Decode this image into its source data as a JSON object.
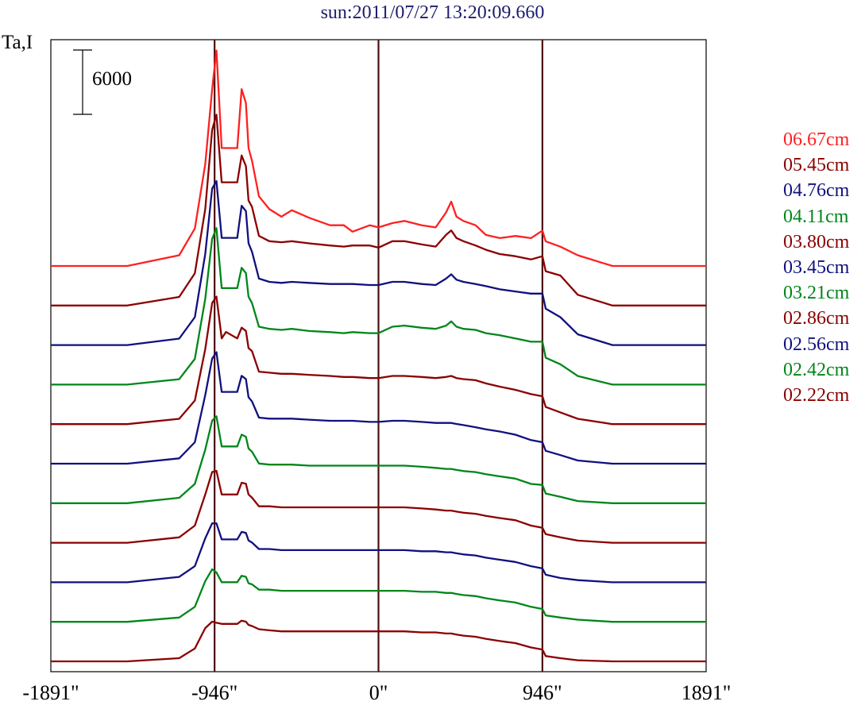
{
  "title": "sun:2011/07/27 13:20:09.660",
  "ylabel": "Ta,I",
  "scale_bar_label": "6000",
  "colors": {
    "frame": "#000000",
    "vlines": "#4a1010",
    "red": "#ff2020",
    "maroon": "#8b0000",
    "navy": "#10107f",
    "green": "#00861a"
  },
  "chart_data": {
    "type": "line",
    "title": "sun:2011/07/27 13:20:09.660",
    "ylabel": "Ta,I",
    "xlabel": "",
    "x_ticks": [
      "-1891\"",
      "-946\"",
      "0\"",
      "946\"",
      "1891\""
    ],
    "x_tick_values": [
      -1891,
      -946,
      0,
      946,
      1891
    ],
    "xlim": [
      -1891,
      1891
    ],
    "vertical_lines": [
      -946,
      0,
      946
    ],
    "scale_bar": 6000,
    "grid": false,
    "legend_placement": "right",
    "note_units": "x in arcsec; y in Ta,I units relative to each trace's baseline",
    "series": [
      {
        "name": "06.67cm",
        "color": "#ff2020",
        "x": [
          -1891,
          -1450,
          -1150,
          -1060,
          -1000,
          -960,
          -935,
          -905,
          -880,
          -815,
          -790,
          -765,
          -750,
          -730,
          -690,
          -630,
          -560,
          -500,
          -400,
          -280,
          -200,
          -150,
          -50,
          0,
          80,
          150,
          250,
          330,
          390,
          420,
          450,
          490,
          560,
          620,
          700,
          790,
          880,
          946,
          965,
          1050,
          1150,
          1350,
          1891
        ],
        "y": [
          0,
          0,
          1000,
          3500,
          9500,
          16500,
          20100,
          11000,
          11000,
          11000,
          16500,
          15200,
          11000,
          9800,
          6500,
          5300,
          4600,
          5200,
          4500,
          3800,
          3800,
          3200,
          3800,
          3600,
          4000,
          4200,
          3800,
          3600,
          5000,
          6000,
          4600,
          4200,
          3800,
          2900,
          2600,
          2800,
          2600,
          3300,
          2300,
          1800,
          1000,
          0,
          0
        ]
      },
      {
        "name": "05.45cm",
        "color": "#8b0000",
        "x": [
          -1891,
          -1450,
          -1150,
          -1060,
          -1000,
          -960,
          -935,
          -905,
          -880,
          -815,
          -790,
          -765,
          -750,
          -730,
          -690,
          -630,
          -560,
          -500,
          -400,
          -280,
          -200,
          -150,
          -50,
          0,
          80,
          150,
          250,
          330,
          390,
          420,
          450,
          490,
          560,
          620,
          700,
          790,
          880,
          946,
          965,
          1050,
          1150,
          1350,
          1891
        ],
        "y": [
          0,
          0,
          800,
          3000,
          9000,
          16400,
          17800,
          11500,
          11500,
          11500,
          14000,
          13000,
          9800,
          9200,
          6500,
          6000,
          5900,
          6000,
          5800,
          5600,
          5500,
          5600,
          5600,
          5400,
          6000,
          6000,
          5700,
          5500,
          6600,
          7000,
          6300,
          6000,
          5600,
          5200,
          4800,
          4600,
          4300,
          4600,
          3200,
          2800,
          1000,
          0,
          0
        ]
      },
      {
        "name": "04.76cm",
        "color": "#10107f",
        "x": [
          -1891,
          -1450,
          -1150,
          -1060,
          -1000,
          -960,
          -935,
          -905,
          -880,
          -815,
          -790,
          -765,
          -750,
          -730,
          -690,
          -630,
          -560,
          -500,
          -400,
          -280,
          -200,
          -150,
          -50,
          0,
          80,
          150,
          250,
          330,
          390,
          420,
          450,
          490,
          560,
          620,
          700,
          790,
          880,
          946,
          965,
          1050,
          1150,
          1350,
          1891
        ],
        "y": [
          0,
          0,
          600,
          2600,
          8500,
          14600,
          15300,
          10000,
          10000,
          10000,
          13000,
          12500,
          9500,
          8700,
          6200,
          5900,
          5800,
          5900,
          5800,
          5700,
          5700,
          5700,
          5600,
          5600,
          5900,
          5900,
          5700,
          5600,
          6200,
          6600,
          6100,
          5900,
          5700,
          5500,
          5200,
          5000,
          4800,
          4800,
          3400,
          2600,
          1000,
          0,
          0
        ]
      },
      {
        "name": "04.11cm",
        "color": "#00861a",
        "x": [
          -1891,
          -1450,
          -1150,
          -1060,
          -1000,
          -960,
          -935,
          -905,
          -880,
          -815,
          -790,
          -765,
          -750,
          -730,
          -690,
          -630,
          -560,
          -500,
          -400,
          -280,
          -200,
          -150,
          -50,
          0,
          80,
          150,
          250,
          330,
          390,
          420,
          450,
          490,
          560,
          620,
          700,
          790,
          880,
          946,
          965,
          1050,
          1150,
          1350,
          1891
        ],
        "y": [
          0,
          0,
          500,
          2400,
          8000,
          13600,
          14600,
          9000,
          9000,
          9000,
          10900,
          10400,
          8200,
          7600,
          5400,
          5200,
          5100,
          5200,
          5000,
          4900,
          4800,
          4900,
          4800,
          4800,
          5400,
          5500,
          5300,
          5200,
          5500,
          5900,
          5400,
          5200,
          5100,
          4800,
          4600,
          4300,
          4000,
          4000,
          2500,
          1900,
          800,
          0,
          0
        ]
      },
      {
        "name": "03.80cm",
        "color": "#8b0000",
        "x": [
          -1891,
          -1450,
          -1150,
          -1060,
          -1000,
          -960,
          -935,
          -905,
          -880,
          -815,
          -790,
          -765,
          -750,
          -730,
          -690,
          -630,
          -560,
          -500,
          -400,
          -280,
          -200,
          -150,
          -50,
          0,
          80,
          150,
          250,
          330,
          390,
          420,
          450,
          490,
          560,
          620,
          700,
          790,
          880,
          946,
          965,
          1050,
          1150,
          1350,
          1891
        ],
        "y": [
          0,
          0,
          500,
          2200,
          7000,
          11300,
          11900,
          8000,
          8600,
          8000,
          9000,
          8700,
          7100,
          6800,
          4900,
          4800,
          4700,
          4700,
          4600,
          4500,
          4400,
          4400,
          4300,
          4300,
          4500,
          4500,
          4400,
          4300,
          4400,
          4500,
          4300,
          4200,
          4100,
          3800,
          3500,
          3200,
          2800,
          2600,
          1600,
          1100,
          500,
          0,
          0
        ]
      },
      {
        "name": "03.45cm",
        "color": "#10107f",
        "x": [
          -1891,
          -1450,
          -1150,
          -1060,
          -1000,
          -960,
          -935,
          -905,
          -880,
          -815,
          -790,
          -765,
          -750,
          -730,
          -690,
          -630,
          -560,
          -500,
          -400,
          -280,
          -200,
          -150,
          -50,
          0,
          80,
          150,
          250,
          330,
          390,
          420,
          450,
          490,
          560,
          620,
          700,
          790,
          880,
          946,
          965,
          1050,
          1150,
          1350,
          1891
        ],
        "y": [
          0,
          0,
          500,
          2000,
          6400,
          9800,
          10400,
          6700,
          6700,
          6700,
          8200,
          7900,
          6200,
          5800,
          4300,
          4200,
          4200,
          4200,
          4100,
          4000,
          4000,
          4000,
          3900,
          3900,
          4000,
          4000,
          3900,
          3800,
          3800,
          3800,
          3700,
          3600,
          3400,
          3200,
          3000,
          2700,
          2200,
          2000,
          1200,
          800,
          300,
          0,
          0
        ]
      },
      {
        "name": "03.21cm",
        "color": "#00861a",
        "x": [
          -1891,
          -1450,
          -1150,
          -1060,
          -1000,
          -960,
          -935,
          -905,
          -880,
          -815,
          -790,
          -765,
          -750,
          -730,
          -690,
          -630,
          -560,
          -500,
          -400,
          -280,
          -200,
          -150,
          -50,
          0,
          80,
          150,
          250,
          330,
          390,
          420,
          450,
          490,
          560,
          620,
          700,
          790,
          880,
          946,
          965,
          1050,
          1150,
          1350,
          1891
        ],
        "y": [
          0,
          0,
          500,
          1800,
          5000,
          7700,
          8100,
          5300,
          5300,
          5300,
          6400,
          6200,
          5100,
          4800,
          3700,
          3600,
          3600,
          3600,
          3500,
          3500,
          3500,
          3500,
          3500,
          3500,
          3500,
          3500,
          3400,
          3300,
          3200,
          3200,
          3100,
          3000,
          2900,
          2700,
          2500,
          2300,
          1800,
          1700,
          900,
          600,
          200,
          0,
          0
        ]
      },
      {
        "name": "02.86cm",
        "color": "#8b0000",
        "x": [
          -1891,
          -1450,
          -1150,
          -1060,
          -1000,
          -960,
          -935,
          -905,
          -880,
          -815,
          -790,
          -765,
          -750,
          -730,
          -690,
          -630,
          -560,
          -500,
          -400,
          -280,
          -200,
          -150,
          -50,
          0,
          80,
          150,
          250,
          330,
          390,
          420,
          450,
          490,
          560,
          620,
          700,
          790,
          880,
          946,
          965,
          1050,
          1150,
          1350,
          1891
        ],
        "y": [
          0,
          0,
          500,
          1600,
          4500,
          6600,
          6700,
          4500,
          4500,
          4500,
          5600,
          5500,
          4500,
          4200,
          3400,
          3400,
          3300,
          3300,
          3300,
          3300,
          3300,
          3300,
          3300,
          3300,
          3300,
          3300,
          3200,
          3100,
          3000,
          3000,
          2900,
          2800,
          2700,
          2500,
          2300,
          2100,
          1600,
          1400,
          800,
          500,
          200,
          0,
          0
        ]
      },
      {
        "name": "02.56cm",
        "color": "#10107f",
        "x": [
          -1891,
          -1450,
          -1150,
          -1060,
          -1000,
          -960,
          -935,
          -905,
          -880,
          -815,
          -790,
          -765,
          -750,
          -730,
          -690,
          -630,
          -560,
          -500,
          -400,
          -280,
          -200,
          -150,
          -50,
          0,
          80,
          150,
          250,
          330,
          390,
          420,
          450,
          490,
          560,
          620,
          700,
          790,
          880,
          946,
          965,
          1050,
          1150,
          1350,
          1891
        ],
        "y": [
          0,
          0,
          500,
          1500,
          4100,
          5500,
          5500,
          4000,
          4000,
          4000,
          4700,
          4600,
          3900,
          3700,
          3100,
          3100,
          3000,
          3000,
          3000,
          3000,
          3000,
          3000,
          3000,
          3000,
          3000,
          3000,
          2900,
          2900,
          2800,
          2800,
          2700,
          2600,
          2500,
          2300,
          2100,
          1900,
          1500,
          1300,
          700,
          400,
          200,
          0,
          0
        ]
      },
      {
        "name": "02.42cm",
        "color": "#00861a",
        "x": [
          -1891,
          -1450,
          -1150,
          -1060,
          -1000,
          -960,
          -935,
          -905,
          -880,
          -815,
          -790,
          -765,
          -750,
          -730,
          -690,
          -630,
          -560,
          -500,
          -400,
          -280,
          -200,
          -150,
          -50,
          0,
          80,
          150,
          250,
          330,
          390,
          420,
          450,
          490,
          560,
          620,
          700,
          790,
          880,
          946,
          965,
          1050,
          1150,
          1350,
          1891
        ],
        "y": [
          0,
          0,
          400,
          1400,
          3800,
          4900,
          4600,
          3700,
          3700,
          3700,
          4300,
          4200,
          3600,
          3500,
          3000,
          3000,
          2900,
          2900,
          2900,
          2900,
          2900,
          2900,
          2900,
          2900,
          2900,
          2900,
          2800,
          2800,
          2700,
          2700,
          2600,
          2500,
          2400,
          2200,
          2000,
          1800,
          1400,
          1200,
          600,
          400,
          200,
          0,
          0
        ]
      },
      {
        "name": "02.22cm",
        "color": "#8b0000",
        "x": [
          -1891,
          -1450,
          -1150,
          -1060,
          -1000,
          -960,
          -935,
          -905,
          -880,
          -815,
          -790,
          -765,
          -750,
          -730,
          -690,
          -630,
          -560,
          -500,
          -400,
          -280,
          -200,
          -150,
          -50,
          0,
          80,
          150,
          250,
          330,
          390,
          420,
          450,
          490,
          560,
          620,
          700,
          790,
          880,
          946,
          965,
          1050,
          1150,
          1350,
          1891
        ],
        "y": [
          0,
          0,
          300,
          1200,
          3100,
          3700,
          3600,
          3500,
          3500,
          3500,
          3800,
          3700,
          3400,
          3300,
          3000,
          2900,
          2800,
          2800,
          2800,
          2800,
          2800,
          2800,
          2800,
          2800,
          2800,
          2800,
          2700,
          2700,
          2600,
          2600,
          2500,
          2400,
          2300,
          2100,
          1900,
          1700,
          1300,
          1100,
          500,
          300,
          100,
          0,
          0
        ]
      }
    ]
  }
}
